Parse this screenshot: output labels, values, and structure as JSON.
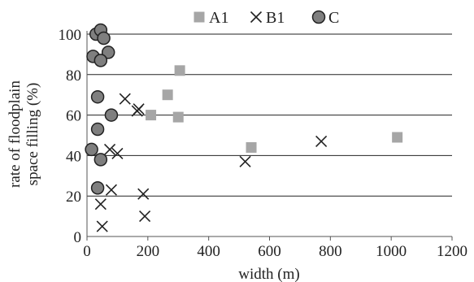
{
  "chart_data": {
    "type": "scatter",
    "xlabel": "width (m)",
    "ylabel_lines": [
      "rate of floodplain",
      "space filling (%)"
    ],
    "xlim": [
      0,
      1200
    ],
    "ylim": [
      0,
      100
    ],
    "x_ticks": [
      0,
      200,
      400,
      600,
      800,
      1000,
      1200
    ],
    "y_ticks": [
      0,
      20,
      40,
      60,
      80,
      100
    ],
    "grid": "horizontal",
    "legend_position": "top",
    "series": [
      {
        "name": "A1",
        "marker": "square",
        "color": "#a6a6a6",
        "points": [
          [
            305,
            82
          ],
          [
            265,
            70
          ],
          [
            210,
            60
          ],
          [
            300,
            59
          ],
          [
            540,
            44
          ],
          [
            1020,
            49
          ]
        ]
      },
      {
        "name": "B1",
        "marker": "x",
        "color": "#222222",
        "points": [
          [
            125,
            68
          ],
          [
            165,
            62
          ],
          [
            170,
            63
          ],
          [
            75,
            43
          ],
          [
            100,
            41
          ],
          [
            520,
            37
          ],
          [
            770,
            47
          ],
          [
            45,
            16
          ],
          [
            80,
            23
          ],
          [
            185,
            21
          ],
          [
            50,
            5
          ],
          [
            190,
            10
          ]
        ]
      },
      {
        "name": "C",
        "marker": "circle",
        "color": "#7f7f7f",
        "points": [
          [
            30,
            100
          ],
          [
            45,
            102
          ],
          [
            55,
            98
          ],
          [
            20,
            89
          ],
          [
            70,
            91
          ],
          [
            45,
            87
          ],
          [
            35,
            69
          ],
          [
            80,
            60
          ],
          [
            35,
            53
          ],
          [
            15,
            43
          ],
          [
            45,
            38
          ],
          [
            35,
            24
          ]
        ]
      }
    ]
  }
}
